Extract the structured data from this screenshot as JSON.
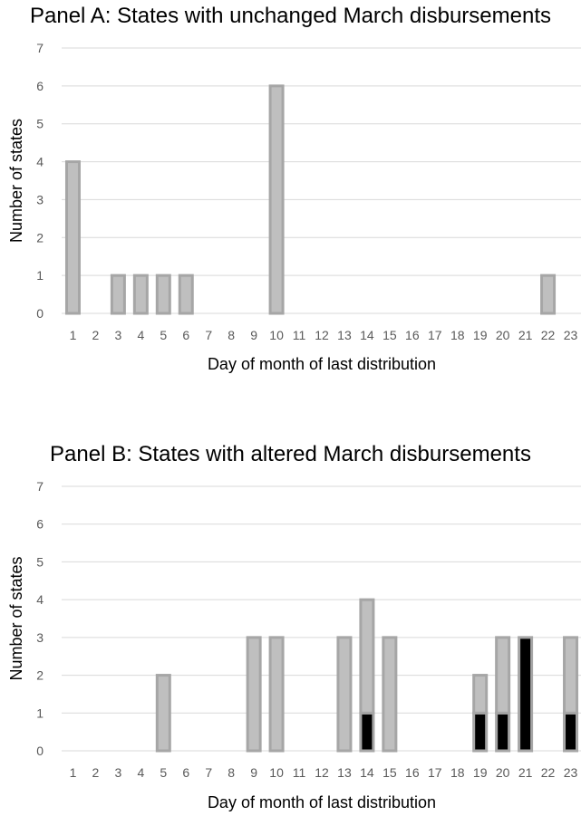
{
  "chart_data": [
    {
      "type": "bar",
      "title": "Panel A: States with unchanged March disbursements",
      "xlabel": "Day of month of last distribution",
      "ylabel": "Number of states",
      "categories": [
        "1",
        "2",
        "3",
        "4",
        "5",
        "6",
        "7",
        "8",
        "9",
        "10",
        "11",
        "12",
        "13",
        "14",
        "15",
        "16",
        "17",
        "18",
        "19",
        "20",
        "21",
        "22",
        "23"
      ],
      "ylim": [
        0,
        7
      ],
      "yticks": [
        "0",
        "1",
        "2",
        "3",
        "4",
        "5",
        "6",
        "7"
      ],
      "grid": true,
      "series": [
        {
          "values": [
            4,
            0,
            1,
            1,
            1,
            1,
            0,
            0,
            0,
            6,
            0,
            0,
            0,
            0,
            0,
            0,
            0,
            0,
            0,
            0,
            0,
            1,
            0
          ],
          "color": "#bfbfbf",
          "edge": "#a6a6a6"
        }
      ]
    },
    {
      "type": "bar",
      "stacked": true,
      "title": "Panel B: States with altered March disbursements",
      "xlabel": "Day of month of last distribution",
      "ylabel": "Number of states",
      "categories": [
        "1",
        "2",
        "3",
        "4",
        "5",
        "6",
        "7",
        "8",
        "9",
        "10",
        "11",
        "12",
        "13",
        "14",
        "15",
        "16",
        "17",
        "18",
        "19",
        "20",
        "21",
        "22",
        "23"
      ],
      "ylim": [
        0,
        7
      ],
      "yticks": [
        "0",
        "1",
        "2",
        "3",
        "4",
        "5",
        "6",
        "7"
      ],
      "grid": true,
      "series": [
        {
          "values": [
            0,
            0,
            0,
            0,
            0,
            0,
            0,
            0,
            0,
            0,
            0,
            0,
            0,
            1,
            0,
            0,
            0,
            0,
            1,
            1,
            3,
            0,
            1
          ],
          "color": "#000000",
          "edge": "#a6a6a6"
        },
        {
          "values": [
            0,
            0,
            0,
            0,
            2,
            0,
            0,
            0,
            3,
            3,
            0,
            0,
            3,
            3,
            3,
            0,
            0,
            0,
            1,
            2,
            0,
            0,
            2
          ],
          "color": "#bfbfbf",
          "edge": "#a6a6a6"
        }
      ]
    }
  ]
}
